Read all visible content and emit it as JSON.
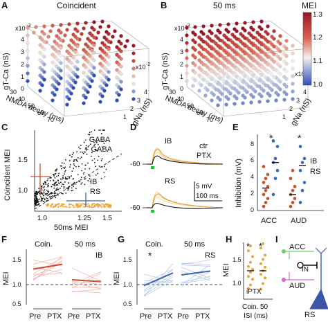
{
  "panels": {
    "A": {
      "letter": "A",
      "title": "Coincident",
      "y_label": "gT-Ca (nS)",
      "y_mult": "x10",
      "y_exp": "-3",
      "x_label": "NMDA decay (ms)",
      "z_label": "gNa (nS)",
      "z_mult": "x10",
      "z_exp": "-2",
      "y_ticks": [
        "4",
        "3",
        "2",
        "1",
        "0"
      ],
      "x_ticks": [
        "30",
        "40",
        "50",
        "60",
        "70"
      ],
      "z_ticks": [
        "4",
        "3",
        "2",
        "1"
      ]
    },
    "B": {
      "letter": "B",
      "title": "50 ms",
      "y_label": "gT-Ca (nS)",
      "y_mult": "x10",
      "y_exp": "-3",
      "x_label": "NMDA decay (ms)",
      "z_label": "gNa (nS)",
      "z_mult": "x10",
      "z_exp": "-2",
      "y_ticks": [
        "4",
        "3",
        "2",
        "1",
        "0"
      ],
      "x_ticks": [
        "30",
        "40",
        "50",
        "60",
        "70"
      ],
      "z_ticks": [
        "4",
        "3",
        "2",
        "1"
      ]
    },
    "colorbar": {
      "title": "MEI",
      "ticks": [
        "1.3",
        "1.2",
        "1.1",
        "1.0"
      ],
      "colors": [
        "#9a1424",
        "#d8634e",
        "#f1f1f1",
        "#2f4fb8"
      ]
    },
    "C": {
      "letter": "C",
      "y_label": "Coincident MEI",
      "x_label": "50ms MEI",
      "x_ticks": [
        "1.0",
        "1.25",
        "1.5"
      ],
      "y_ticks": [
        "1.5",
        "1.0"
      ],
      "legend": [
        {
          "label": "- GABA",
          "color": "#111111"
        },
        {
          "label": "+ GABA",
          "color": "#e8a33a"
        }
      ],
      "ib_label": "IB",
      "rs_label": "RS"
    },
    "D": {
      "letter": "D",
      "ib_label": "IB",
      "rs_label": "RS",
      "ctr_label": "ctr",
      "ptx_label": "PTX",
      "v_label_ib": "-60",
      "v_label_rs": "-60",
      "scale_v": "5 mV",
      "scale_t": "100 ms"
    },
    "E": {
      "letter": "E",
      "y_label": "Inhibition (mV)",
      "y_ticks": [
        "8",
        "6",
        "4",
        "2",
        "0"
      ],
      "groups": [
        "ACC",
        "AUD"
      ],
      "sig": [
        "*",
        "*"
      ],
      "ib_label": "IB",
      "rs_label": "RS"
    },
    "F": {
      "letter": "F",
      "y_label": "MEI",
      "y_ticks": [
        "1.5",
        "1.0",
        "0.5"
      ],
      "cond_labels": [
        "Coin.",
        "50 ms"
      ],
      "x_ticks": [
        "Pre",
        "PTX",
        "Pre",
        "PTX"
      ],
      "cell_label": "IB"
    },
    "G": {
      "letter": "G",
      "y_label": "MEI",
      "y_ticks": [
        "1.5",
        "1.0",
        "0.5"
      ],
      "cond_labels": [
        "Coin.",
        "50 ms"
      ],
      "x_ticks": [
        "Pre",
        "PTX",
        "Pre",
        "PTX"
      ],
      "cell_label": "RS",
      "sig": "*"
    },
    "H": {
      "letter": "H",
      "y_label": "MEI",
      "y_ticks": [
        "1.5",
        "1.0"
      ],
      "x_ticks": [
        "Coin.",
        "50"
      ],
      "x_label": "ISI (ms)",
      "inner_label": "iPTX",
      "sig": [
        "*",
        "*"
      ]
    },
    "I": {
      "letter": "I",
      "acc_label": "ACC",
      "aud_label": "AUD",
      "in_label": "IN",
      "rs_label": "RS"
    }
  },
  "chart_data": [
    {
      "type": "scatter",
      "panel": "C",
      "series": [
        {
          "name": "- GABA",
          "x": [
            1.02,
            1.05,
            1.08,
            1.1,
            1.12,
            1.15,
            1.18,
            1.2,
            1.25,
            1.3,
            1.35,
            1.4,
            1.45,
            1.5
          ],
          "y": [
            1.05,
            1.1,
            1.15,
            1.2,
            1.25,
            1.3,
            1.35,
            1.4,
            1.45,
            1.5,
            1.55,
            1.6,
            1.65,
            1.7
          ]
        },
        {
          "name": "+ GABA",
          "x": [
            1.1,
            1.15,
            1.2,
            1.25,
            1.3,
            1.35,
            1.4,
            1.45,
            1.5
          ],
          "y": [
            0.97,
            0.96,
            0.97,
            0.95,
            0.96,
            0.95,
            0.96,
            0.95,
            0.96
          ]
        }
      ]
    },
    {
      "type": "scatter",
      "panel": "E",
      "ylim": [
        0,
        9
      ],
      "categories": [
        "ACC",
        "AUD"
      ],
      "series": [
        {
          "name": "IB",
          "values": [
            [
              0.5,
              1.0,
              1.5,
              2.0,
              2.5,
              3.0,
              3.5,
              4.0,
              4.5,
              5.5
            ],
            [
              0.5,
              1.0,
              1.5,
              2.0,
              2.5,
              3.0,
              4.0,
              5.0
            ]
          ]
        },
        {
          "name": "RS",
          "values": [
            [
              2.0,
              4.0,
              5.0,
              6.0,
              6.5,
              8.0,
              8.7
            ],
            [
              1.0,
              2.5,
              3.5,
              5.0,
              6.0,
              6.5,
              8.0
            ]
          ]
        }
      ]
    },
    {
      "type": "line",
      "panel": "F",
      "ylim": [
        0.5,
        1.9
      ],
      "series": [
        {
          "name": "Coin.",
          "values": [
            1.32,
            1.42
          ]
        },
        {
          "name": "50 ms",
          "values": [
            1.1,
            1.06
          ]
        }
      ]
    },
    {
      "type": "line",
      "panel": "G",
      "ylim": [
        0.5,
        1.9
      ],
      "series": [
        {
          "name": "Coin.",
          "values": [
            0.98,
            1.24
          ]
        },
        {
          "name": "50 ms",
          "values": [
            1.2,
            1.28
          ]
        }
      ]
    },
    {
      "type": "scatter",
      "panel": "H",
      "ylim": [
        0.9,
        1.7
      ],
      "categories": [
        "Coin.",
        "50"
      ],
      "values": [
        [
          1.05,
          1.1,
          1.18,
          1.22,
          1.28,
          1.32,
          1.36,
          1.42,
          1.5,
          1.58,
          1.65
        ],
        [
          1.04,
          1.12,
          1.2,
          1.25,
          1.3,
          1.35,
          1.4,
          1.46,
          1.52,
          1.62,
          1.68
        ]
      ]
    }
  ]
}
